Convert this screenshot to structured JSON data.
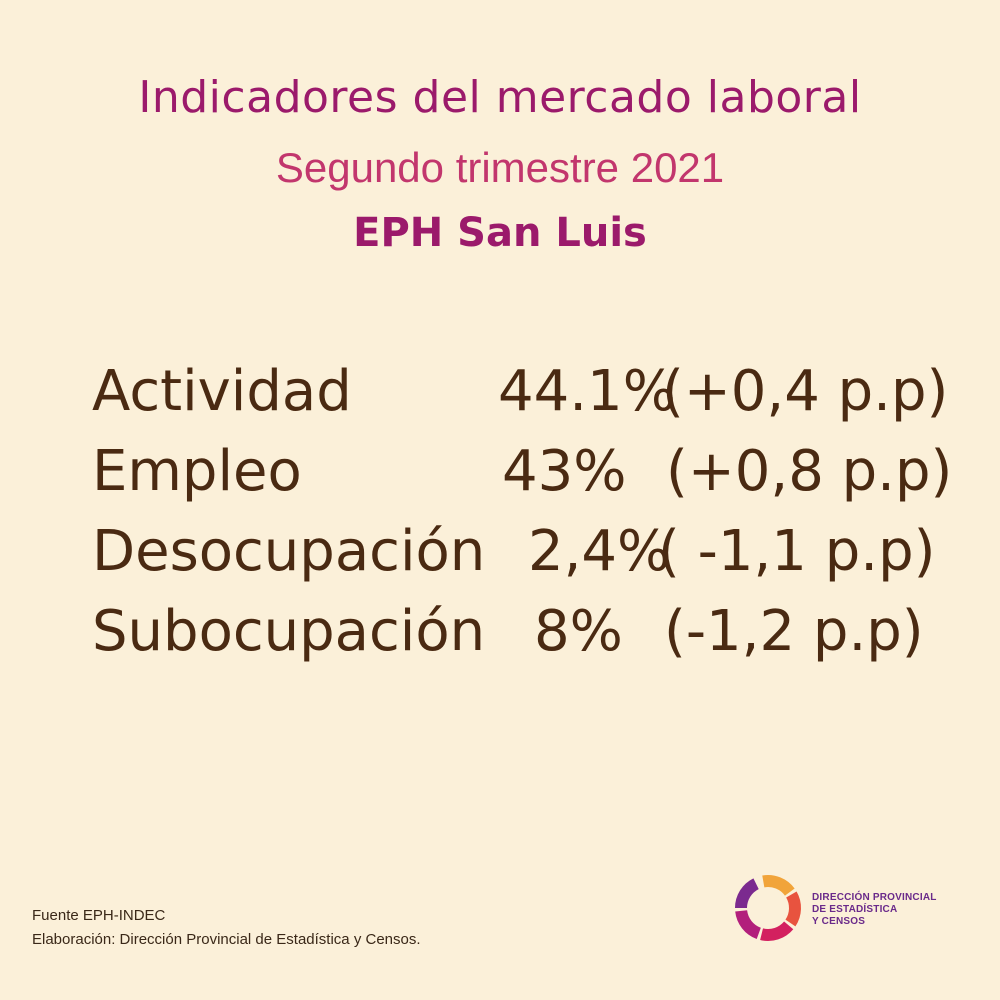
{
  "header": {
    "title": "Indicadores del mercado laboral",
    "subtitle": "Segundo trimestre 2021",
    "region": "EPH San Luis"
  },
  "indicators": [
    {
      "name": "Actividad",
      "value": "44.1%",
      "change": "(+0,4 p.p)"
    },
    {
      "name": "Empleo",
      "value": "43%",
      "change": "(+0,8 p.p)"
    },
    {
      "name": "Desocupación",
      "value": "2,4%",
      "change": "( -1,1 p.p)"
    },
    {
      "name": "Subocupación",
      "value": "8%",
      "change": "(-1,2 p.p)"
    }
  ],
  "footer": {
    "source": "Fuente  EPH-INDEC",
    "elaboration": "Elaboración: Dirección Provincial de Estadística y Censos."
  },
  "logo": {
    "line1": "DIRECCIÓN PROVINCIAL",
    "line2": "DE ESTADÍSTICA",
    "line3": "Y CENSOS",
    "icon": "segmented-ring-icon",
    "colors": [
      "#f1a43a",
      "#e8533f",
      "#d3205f",
      "#b21f7c",
      "#7b2a8f"
    ]
  },
  "colors": {
    "background": "#fbf0d9",
    "title": "#9b1a6b",
    "subtitle": "#c2366d",
    "body_text": "#4a2a12"
  }
}
